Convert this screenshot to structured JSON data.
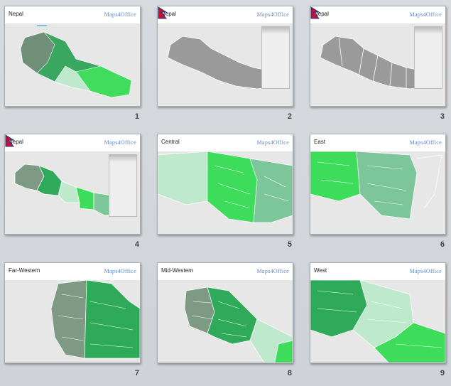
{
  "slides": [
    {
      "title": "Nepal",
      "number": "1",
      "logo": "Maps4Office"
    },
    {
      "title": "Nepal",
      "number": "2",
      "logo": "Maps4Office"
    },
    {
      "title": "Nepal",
      "number": "3",
      "logo": "Maps4Office"
    },
    {
      "title": "Nepal",
      "number": "4",
      "logo": "Maps4Office"
    },
    {
      "title": "Central",
      "number": "5",
      "logo": "Maps4Office"
    },
    {
      "title": "East",
      "number": "6",
      "logo": "Maps4Office"
    },
    {
      "title": "Far-Western",
      "number": "7",
      "logo": "Maps4Office"
    },
    {
      "title": "Mid-Western",
      "number": "8",
      "logo": "Maps4Office"
    },
    {
      "title": "West",
      "number": "9",
      "logo": "Maps4Office"
    }
  ],
  "colors": {
    "background": "#d4d7db",
    "map_gray": "#9a9a9a",
    "green_dark": "#2eaa5a",
    "green_bright": "#3ddc5a",
    "green_mid": "#7cc69a",
    "green_light": "#bfe9cc",
    "gray_green": "#7f9a84"
  },
  "icons": {
    "flag": "nepal-flag-icon"
  }
}
